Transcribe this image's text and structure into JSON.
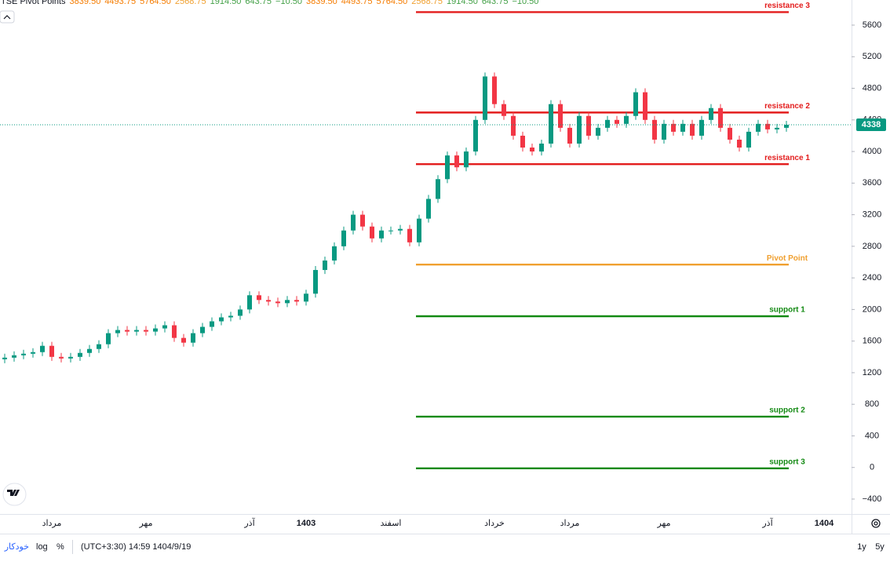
{
  "chart_data": {
    "type": "candlestick",
    "categories": [
      null,
      null,
      null,
      null,
      null,
      "مرداد",
      null,
      null,
      null,
      null,
      null,
      null,
      null,
      null,
      null,
      "مهر",
      null,
      null,
      null,
      null,
      null,
      null,
      null,
      null,
      null,
      null,
      "آذر",
      null,
      null,
      null,
      null,
      null,
      "1403",
      null,
      null,
      null,
      null,
      null,
      null,
      null,
      null,
      "اسفند",
      null,
      null,
      null,
      null,
      null,
      null,
      null,
      null,
      null,
      null,
      "خرداد",
      null,
      null,
      null,
      null,
      null,
      null,
      null,
      "مرداد",
      null,
      null,
      null,
      null,
      null,
      null,
      null,
      null,
      null,
      "مهر",
      null,
      null,
      null,
      null,
      null,
      null,
      null,
      null,
      null,
      null,
      "آذر",
      null,
      null,
      null,
      null,
      null,
      "1404",
      null,
      null
    ],
    "open": [
      1370,
      1390,
      1420,
      1440,
      1460,
      1540,
      1400,
      1380,
      1400,
      1450,
      1500,
      1560,
      1700,
      1740,
      1720,
      1740,
      1720,
      1760,
      1800,
      1640,
      1580,
      1700,
      1780,
      1850,
      1900,
      1920,
      2000,
      2180,
      2120,
      2100,
      2080,
      2120,
      2100,
      2200,
      2500,
      2620,
      2800,
      3000,
      3200,
      3050,
      2900,
      3000,
      3000,
      3020,
      2850,
      3150,
      3400,
      3650,
      3950,
      3800,
      4000,
      4400,
      4950,
      4600,
      4450,
      4200,
      4050,
      4000,
      4100,
      4600,
      4300,
      4100,
      4450,
      4200,
      4300,
      4400,
      4350,
      4450,
      4750,
      4400,
      4150,
      4350,
      4250,
      4350,
      4200,
      4400,
      4550,
      4300,
      4150,
      4050,
      4250,
      4350,
      4280,
      4300,
      null,
      null,
      null,
      null,
      null,
      null
    ],
    "high": [
      1440,
      1470,
      1490,
      1510,
      1590,
      1590,
      1450,
      1450,
      1500,
      1550,
      1610,
      1750,
      1790,
      1790,
      1790,
      1790,
      1810,
      1850,
      1850,
      1690,
      1750,
      1830,
      1900,
      1950,
      1970,
      2050,
      2230,
      2230,
      2170,
      2150,
      2170,
      2170,
      2250,
      2550,
      2670,
      2850,
      3050,
      3250,
      3250,
      3100,
      3050,
      3050,
      3070,
      3070,
      3200,
      3450,
      3700,
      4000,
      4000,
      4050,
      4450,
      5000,
      5000,
      4650,
      4500,
      4250,
      4100,
      4150,
      4650,
      4650,
      4350,
      4500,
      4500,
      4350,
      4450,
      4450,
      4500,
      4800,
      4800,
      4450,
      4400,
      4400,
      4400,
      4400,
      4450,
      4600,
      4600,
      4350,
      4200,
      4300,
      4400,
      4400,
      4350,
      4388,
      null,
      null,
      null,
      null,
      null,
      null
    ],
    "low": [
      1320,
      1340,
      1370,
      1390,
      1410,
      1350,
      1330,
      1330,
      1350,
      1400,
      1450,
      1510,
      1650,
      1670,
      1670,
      1670,
      1670,
      1710,
      1590,
      1530,
      1530,
      1650,
      1730,
      1800,
      1850,
      1870,
      1950,
      2070,
      2050,
      2030,
      2030,
      2050,
      2050,
      2150,
      2450,
      2570,
      2750,
      2950,
      3000,
      2850,
      2850,
      2950,
      2950,
      2800,
      2800,
      3100,
      3350,
      3600,
      3750,
      3750,
      3950,
      4350,
      4550,
      4400,
      4150,
      4000,
      3950,
      3950,
      4050,
      4250,
      4050,
      4050,
      4150,
      4150,
      4250,
      4300,
      4300,
      4400,
      4350,
      4100,
      4100,
      4200,
      4200,
      4150,
      4150,
      4350,
      4250,
      4100,
      4000,
      4000,
      4200,
      4230,
      4230,
      4250,
      null,
      null,
      null,
      null,
      null,
      null
    ],
    "close": [
      1390,
      1420,
      1440,
      1460,
      1540,
      1400,
      1380,
      1400,
      1450,
      1500,
      1560,
      1700,
      1740,
      1720,
      1740,
      1720,
      1760,
      1800,
      1640,
      1580,
      1700,
      1780,
      1850,
      1900,
      1920,
      2000,
      2180,
      2120,
      2100,
      2080,
      2120,
      2100,
      2200,
      2500,
      2620,
      2800,
      3000,
      3200,
      3050,
      2900,
      3000,
      3000,
      3020,
      2850,
      3150,
      3400,
      3650,
      3950,
      3800,
      4000,
      4400,
      4950,
      4600,
      4450,
      4200,
      4050,
      4000,
      4100,
      4600,
      4300,
      4100,
      4450,
      4200,
      4300,
      4400,
      4350,
      4450,
      4750,
      4400,
      4150,
      4350,
      4250,
      4350,
      4200,
      4400,
      4550,
      4300,
      4150,
      4050,
      4250,
      4350,
      4280,
      4300,
      4338,
      null,
      null,
      null,
      null,
      null,
      null
    ],
    "up_color": "#089981",
    "down_color": "#f23645",
    "ylim": [
      -589,
      5918
    ],
    "yticks": [
      {
        "value": -400,
        "label": "−400"
      },
      0,
      400,
      800,
      1200,
      1600,
      2000,
      2400,
      2800,
      3200,
      3600,
      4000,
      4400,
      4800,
      5200,
      5600
    ],
    "indicator": {
      "title": "TSE Pivot Points",
      "levels": [
        {
          "name": "resistance 1",
          "value": 3839.5,
          "value_label": "3839.50",
          "color": "#e31c1c",
          "legend_color": "#f57c00"
        },
        {
          "name": "resistance 2",
          "value": 4493.75,
          "value_label": "4493.75",
          "color": "#e31c1c",
          "legend_color": "#f57c00"
        },
        {
          "name": "resistance 3",
          "value": 5764.5,
          "value_label": "5764.50",
          "color": "#e31c1c",
          "legend_color": "#f57c00"
        },
        {
          "name": "Pivot Point",
          "value": 2568.75,
          "value_label": "2568.75",
          "color": "#f0a030",
          "legend_color": "#f0a030"
        },
        {
          "name": "support 1",
          "value": 1914.5,
          "value_label": "1914.50",
          "color": "#138a13",
          "legend_color": "#43a047"
        },
        {
          "name": "support 2",
          "value": 643.75,
          "value_label": "643.75",
          "color": "#138a13",
          "legend_color": "#43a047"
        },
        {
          "name": "support 3",
          "value": -10.5,
          "value_label": "−10.50",
          "color": "#138a13",
          "legend_color": "#43a047"
        }
      ]
    }
  },
  "toolbar": {
    "auto": "خودکار",
    "log": "log",
    "percent": "%",
    "time": "(UTC+3:30) 14:59 1404/9/19",
    "ranges": [
      "1y",
      "5y"
    ]
  }
}
